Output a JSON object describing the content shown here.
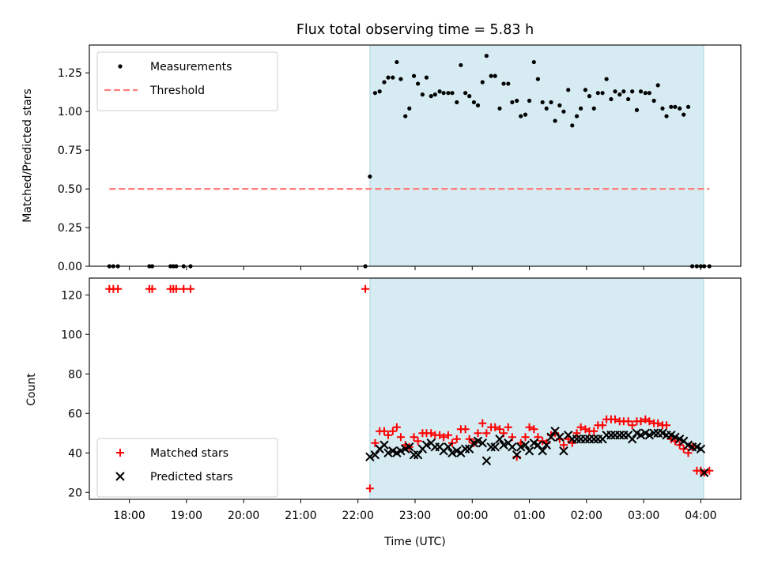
{
  "chart_data": [
    {
      "type": "scatter",
      "title": "Flux total observing time = 5.83 h",
      "xlabel": "",
      "ylabel": "Matched/Predicted stars",
      "xlim": [
        17.3,
        28.7
      ],
      "ylim": [
        0,
        1.43
      ],
      "yticks": [
        0.0,
        0.25,
        0.5,
        0.75,
        1.0,
        1.25
      ],
      "ytick_labels": [
        "0.00",
        "0.25",
        "0.50",
        "0.75",
        "1.00",
        "1.25"
      ],
      "legend_position": "top-left",
      "shaded_interval": [
        22.21,
        28.05
      ],
      "series": [
        {
          "name": "Measurements",
          "marker": "dot",
          "color": "#000000",
          "x": [
            17.65,
            17.72,
            17.8,
            18.35,
            18.4,
            18.72,
            18.77,
            18.82,
            18.95,
            19.07,
            22.13,
            22.21,
            22.3,
            22.38,
            22.46,
            22.53,
            22.61,
            22.68,
            22.75,
            22.83,
            22.9,
            22.98,
            23.05,
            23.13,
            23.2,
            23.28,
            23.35,
            23.43,
            23.5,
            23.58,
            23.65,
            23.73,
            23.8,
            23.88,
            23.95,
            24.03,
            24.1,
            24.18,
            24.25,
            24.33,
            24.4,
            24.48,
            24.55,
            24.63,
            24.7,
            24.78,
            24.85,
            24.93,
            25.0,
            25.08,
            25.15,
            25.23,
            25.3,
            25.38,
            25.45,
            25.53,
            25.6,
            25.68,
            25.75,
            25.83,
            25.9,
            25.98,
            26.05,
            26.13,
            26.2,
            26.28,
            26.35,
            26.43,
            26.5,
            26.58,
            26.65,
            26.73,
            26.8,
            26.88,
            26.95,
            27.03,
            27.1,
            27.18,
            27.25,
            27.33,
            27.4,
            27.48,
            27.55,
            27.63,
            27.7,
            27.78,
            27.85,
            27.93,
            28.0,
            28.06,
            28.15
          ],
          "y": [
            0.0,
            0.0,
            0.0,
            0.0,
            0.0,
            0.0,
            0.0,
            0.0,
            0.0,
            0.0,
            0.0,
            0.58,
            1.12,
            1.13,
            1.19,
            1.22,
            1.22,
            1.32,
            1.21,
            0.97,
            1.02,
            1.23,
            1.18,
            1.11,
            1.22,
            1.1,
            1.11,
            1.13,
            1.12,
            1.12,
            1.12,
            1.06,
            1.3,
            1.12,
            1.1,
            1.06,
            1.04,
            1.19,
            1.36,
            1.23,
            1.23,
            1.02,
            1.18,
            1.18,
            1.06,
            1.07,
            0.97,
            0.98,
            1.07,
            1.32,
            1.21,
            1.06,
            1.02,
            1.06,
            0.94,
            1.04,
            1.0,
            1.14,
            0.91,
            0.97,
            1.02,
            1.14,
            1.1,
            1.02,
            1.12,
            1.12,
            1.21,
            1.08,
            1.13,
            1.11,
            1.13,
            1.08,
            1.13,
            1.01,
            1.13,
            1.12,
            1.12,
            1.07,
            1.17,
            1.02,
            0.97,
            1.03,
            1.03,
            1.02,
            0.98,
            1.03,
            0.0,
            0.0,
            0.0,
            0.0,
            0.0
          ]
        },
        {
          "name": "Threshold",
          "marker": "dashed-line",
          "color": "#ff7f7f",
          "x": [
            17.65,
            28.15
          ],
          "y": [
            0.5,
            0.5
          ]
        }
      ]
    },
    {
      "type": "scatter",
      "title": "",
      "xlabel": "Time (UTC)",
      "ylabel": "Count",
      "xlim": [
        17.3,
        28.7
      ],
      "ylim": [
        16.5,
        128.5
      ],
      "yticks": [
        20,
        40,
        60,
        80,
        100,
        120
      ],
      "ytick_labels": [
        "20",
        "40",
        "60",
        "80",
        "100",
        "120"
      ],
      "xticks": [
        18,
        19,
        20,
        21,
        22,
        23,
        24,
        25,
        26,
        27,
        28
      ],
      "xtick_labels": [
        "18:00",
        "19:00",
        "20:00",
        "21:00",
        "22:00",
        "23:00",
        "00:00",
        "01:00",
        "02:00",
        "03:00",
        "04:00"
      ],
      "legend_position": "bottom-left",
      "shaded_interval": [
        22.21,
        28.05
      ],
      "series": [
        {
          "name": "Matched stars",
          "marker": "plus",
          "color": "#ff0000",
          "x": [
            17.65,
            17.72,
            17.8,
            18.35,
            18.4,
            18.72,
            18.77,
            18.82,
            18.95,
            19.07,
            22.13,
            22.21,
            22.3,
            22.38,
            22.46,
            22.53,
            22.61,
            22.68,
            22.75,
            22.83,
            22.9,
            22.98,
            23.05,
            23.13,
            23.2,
            23.28,
            23.35,
            23.43,
            23.5,
            23.58,
            23.65,
            23.73,
            23.8,
            23.88,
            23.95,
            24.03,
            24.1,
            24.18,
            24.25,
            24.33,
            24.4,
            24.48,
            24.55,
            24.63,
            24.7,
            24.78,
            24.85,
            24.93,
            25.0,
            25.08,
            25.15,
            25.23,
            25.3,
            25.38,
            25.45,
            25.53,
            25.6,
            25.68,
            25.75,
            25.83,
            25.9,
            25.98,
            26.05,
            26.13,
            26.2,
            26.28,
            26.35,
            26.43,
            26.5,
            26.58,
            26.65,
            26.73,
            26.8,
            26.88,
            26.95,
            27.03,
            27.1,
            27.18,
            27.25,
            27.33,
            27.4,
            27.48,
            27.55,
            27.63,
            27.7,
            27.78,
            27.85,
            27.93,
            28.0,
            28.06,
            28.15
          ],
          "y": [
            123,
            123,
            123,
            123,
            123,
            123,
            123,
            123,
            123,
            123,
            123,
            22,
            45,
            51,
            51,
            49,
            51,
            53,
            48,
            44,
            43,
            48,
            46,
            50,
            50,
            50,
            49,
            49,
            48,
            49,
            45,
            47,
            52,
            52,
            47,
            45,
            50,
            55,
            50,
            53,
            53,
            52,
            50,
            53,
            48,
            38,
            45,
            48,
            53,
            52,
            48,
            46,
            45,
            49,
            50,
            47,
            44,
            47,
            45,
            50,
            53,
            52,
            51,
            51,
            54,
            54,
            57,
            57,
            57,
            56,
            56,
            56,
            54,
            56,
            56,
            57,
            56,
            55,
            55,
            54,
            54,
            47,
            46,
            44,
            42,
            40,
            43,
            31,
            31,
            30,
            31
          ]
        },
        {
          "name": "Predicted stars",
          "marker": "x",
          "color": "#000000",
          "x": [
            22.21,
            22.3,
            22.38,
            22.46,
            22.53,
            22.61,
            22.68,
            22.75,
            22.83,
            22.9,
            22.98,
            23.05,
            23.13,
            23.2,
            23.28,
            23.35,
            23.43,
            23.5,
            23.58,
            23.65,
            23.73,
            23.8,
            23.88,
            23.95,
            24.03,
            24.1,
            24.18,
            24.25,
            24.33,
            24.4,
            24.48,
            24.55,
            24.63,
            24.7,
            24.78,
            24.85,
            24.93,
            25.0,
            25.08,
            25.15,
            25.23,
            25.3,
            25.38,
            25.45,
            25.53,
            25.6,
            25.68,
            25.75,
            25.83,
            25.9,
            25.98,
            26.05,
            26.13,
            26.2,
            26.28,
            26.35,
            26.43,
            26.5,
            26.58,
            26.65,
            26.73,
            26.8,
            26.88,
            26.95,
            27.03,
            27.1,
            27.18,
            27.25,
            27.33,
            27.4,
            27.48,
            27.55,
            27.63,
            27.7,
            27.78,
            27.85,
            27.93,
            28.0,
            28.06
          ],
          "y": [
            38,
            39,
            42,
            44,
            40,
            41,
            40,
            41,
            42,
            43,
            39,
            39,
            42,
            44,
            45,
            43,
            43,
            41,
            43,
            40,
            41,
            40,
            42,
            42,
            45,
            46,
            45,
            36,
            43,
            43,
            47,
            44,
            45,
            43,
            39,
            43,
            44,
            41,
            45,
            44,
            41,
            44,
            48,
            51,
            48,
            41,
            49,
            47,
            47,
            47,
            47,
            47,
            47,
            47,
            47,
            49,
            49,
            49,
            49,
            49,
            49,
            47,
            50,
            49,
            50,
            49,
            50,
            50,
            50,
            49,
            49,
            48,
            47,
            46,
            44,
            43,
            43,
            42,
            30
          ]
        }
      ]
    }
  ]
}
